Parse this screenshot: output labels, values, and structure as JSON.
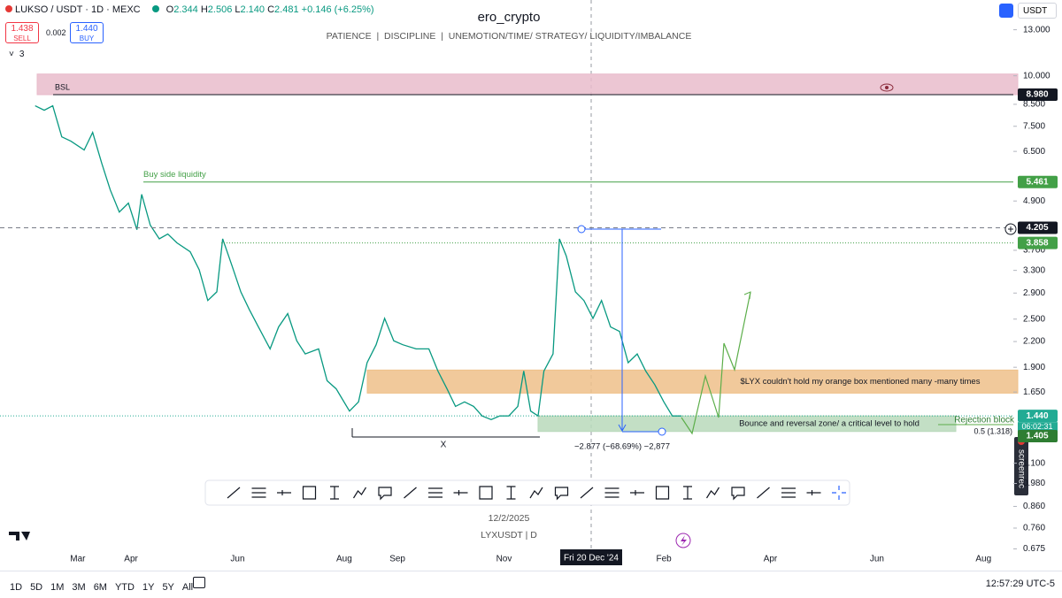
{
  "header": {
    "symbol": "LUKSO / USDT · 1D · MEXC",
    "o_key": "O",
    "o": "2.344",
    "h_key": "H",
    "h": "2.506",
    "l_key": "L",
    "l": "2.140",
    "c_key": "C",
    "c": "2.481",
    "change": "+0.146 (+6.25%)",
    "sell_price": "1.438",
    "sell": "SELL",
    "spread": "0.002",
    "buy_price": "1.440",
    "buy": "BUY",
    "indicators": "3",
    "currency": "USDT"
  },
  "chart_data": {
    "type": "line",
    "title": "ero_crypto",
    "subtitle": "PATIENCE  |  DISCIPLINE  |  UNEMOTION/TIME/ STRATEGY/ LIQUIDITY/IMBALANCE",
    "color": "#089981",
    "log_scale": true,
    "grid": false,
    "x": [
      -0.8,
      -0.63,
      -0.47,
      -0.3,
      -0.13,
      0.12,
      0.28,
      0.45,
      0.61,
      0.78,
      0.95,
      1.11,
      1.2,
      1.36,
      1.53,
      1.69,
      1.86,
      2.11,
      2.28,
      2.44,
      2.61,
      2.72,
      2.89,
      3.06,
      3.22,
      3.39,
      3.61,
      3.77,
      3.94,
      4.11,
      4.27,
      4.52,
      4.68,
      4.85,
      5.1,
      5.27,
      5.43,
      5.6,
      5.76,
      5.93,
      6.1,
      6.35,
      6.59,
      6.76,
      6.93,
      7.09,
      7.26,
      7.43,
      7.59,
      7.76,
      7.92,
      8.09,
      8.26,
      8.37,
      8.5,
      8.64,
      8.75,
      8.92,
      9.04,
      9.17,
      9.34,
      9.5,
      9.67,
      9.83,
      10.0,
      10.17,
      10.33,
      10.5,
      10.66,
      10.83,
      11.0,
      11.16,
      11.33
    ],
    "values": [
      8.43,
      8.22,
      8.43,
      7.06,
      6.89,
      6.55,
      7.24,
      6.07,
      5.22,
      4.6,
      4.84,
      4.16,
      5.09,
      4.27,
      3.95,
      4.06,
      3.86,
      3.67,
      3.31,
      2.78,
      2.92,
      3.95,
      3.4,
      2.92,
      2.64,
      2.39,
      2.11,
      2.39,
      2.58,
      2.21,
      2.05,
      2.11,
      1.76,
      1.68,
      1.48,
      1.56,
      1.95,
      2.16,
      2.51,
      2.21,
      2.16,
      2.11,
      2.11,
      1.86,
      1.68,
      1.52,
      1.56,
      1.52,
      1.44,
      1.41,
      1.44,
      1.44,
      1.52,
      1.86,
      1.48,
      1.44,
      1.86,
      2.05,
      3.95,
      3.58,
      2.92,
      2.78,
      2.51,
      2.78,
      2.39,
      2.33,
      1.95,
      2.05,
      1.86,
      1.72,
      1.56,
      1.44,
      1.44
    ],
    "xlim": [
      -1.46,
      17.56
    ],
    "xticks": [
      {
        "value": 0,
        "label": "Mar"
      },
      {
        "value": 1,
        "label": "Apr"
      },
      {
        "value": 3,
        "label": "Jun"
      },
      {
        "value": 5,
        "label": "Aug"
      },
      {
        "value": 6,
        "label": "Sep"
      },
      {
        "value": 8,
        "label": "Nov"
      },
      {
        "value": 11,
        "label": "Feb"
      },
      {
        "value": 13,
        "label": "Apr"
      },
      {
        "value": 15,
        "label": "Jun"
      },
      {
        "value": 17,
        "label": "Aug"
      }
    ],
    "ylim": [
      0.637,
      15.4
    ],
    "yticks": [
      {
        "value": 13,
        "label": "13.000"
      },
      {
        "value": 10,
        "label": "10.000"
      },
      {
        "value": 8.5,
        "label": "8.500"
      },
      {
        "value": 7.5,
        "label": "7.500"
      },
      {
        "value": 6.5,
        "label": "6.500"
      },
      {
        "value": 4.9,
        "label": "4.900"
      },
      {
        "value": 3.7,
        "label": "3.700"
      },
      {
        "value": 3.3,
        "label": "3.300"
      },
      {
        "value": 2.9,
        "label": "2.900"
      },
      {
        "value": 2.5,
        "label": "2.500"
      },
      {
        "value": 2.2,
        "label": "2.200"
      },
      {
        "value": 1.9,
        "label": "1.900"
      },
      {
        "value": 1.65,
        "label": "1.650"
      },
      {
        "value": 1.1,
        "label": "1.100"
      },
      {
        "value": 0.98,
        "label": "0.980"
      },
      {
        "value": 0.86,
        "label": "0.860"
      },
      {
        "value": 0.76,
        "label": "0.760"
      },
      {
        "value": 0.675,
        "label": "0.675"
      }
    ],
    "zones": [
      {
        "label": "BSL",
        "range": [
          8.98,
          10.1
        ],
        "color": "#e9bccb"
      },
      {
        "label": "$LYX couldn't hold my orange box mentioned many -many times",
        "range": [
          1.64,
          1.87
        ],
        "color": "#efc089"
      },
      {
        "label": "Bounce and reversal zone/ a critical level to hold",
        "range": [
          1.318,
          1.44
        ],
        "color": "#b9d9bb"
      }
    ],
    "levels": [
      {
        "value": 8.98,
        "label": "8.980",
        "color": "#131722",
        "style": "solid"
      },
      {
        "value": 5.461,
        "label": "5.461",
        "color": "#43a047",
        "style": "solid",
        "name": "Buy side liquidity"
      },
      {
        "value": 4.205,
        "label": "4.205",
        "color": "#131722",
        "style": "dashed"
      },
      {
        "value": 3.858,
        "label": "3.858",
        "color": "#43a047",
        "style": "dotted"
      },
      {
        "value": 1.44,
        "label": "1.440",
        "color": "#22ab94",
        "style": "dotted",
        "countdown": "06:02:31"
      },
      {
        "value": 1.405,
        "label": "1.405",
        "color": "#2e7d32",
        "style": "none"
      }
    ],
    "annotations": {
      "rejection": "Rejection block",
      "fib": "0.5 (1.318)",
      "x_mark": "X",
      "measure": "−2.877 (−68.69%) −2,877",
      "crosshair_date": "Fri 20 Dec '24",
      "date": "12/2/2025",
      "ticker": "LYXUSDT | D",
      "screenrec": "screenrec"
    }
  },
  "footer": {
    "ranges": [
      "1D",
      "5D",
      "1M",
      "3M",
      "6M",
      "YTD",
      "1Y",
      "5Y",
      "All"
    ],
    "clock": "12:57:29 UTC-5"
  }
}
